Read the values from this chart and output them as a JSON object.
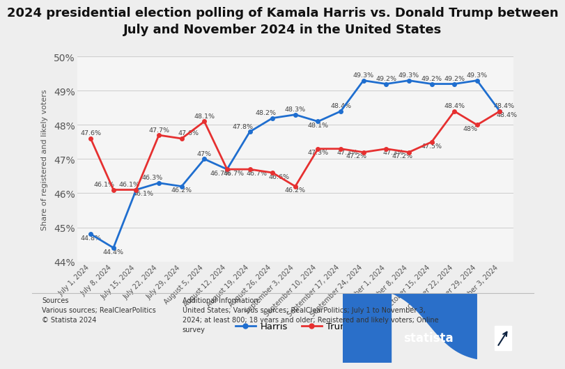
{
  "title": "2024 presidential election polling of Kamala Harris vs. Donald Trump between\nJuly and November 2024 in the United States",
  "ylabel": "Share of registered and likely voters",
  "dates": [
    "July 1, 2024",
    "July 8, 2024",
    "July 15, 2024",
    "July 22, 2024",
    "July 29, 2024",
    "August 5, 2024",
    "August 12, 2024",
    "August 19, 2024",
    "August 26, 2024",
    "September 3, 2024",
    "September 10, 2024",
    "September 17, 2024",
    "September 24, 2024",
    "October 1, 2024",
    "October 8, 2024",
    "October 15, 2024",
    "October 22, 2024",
    "October 29, 2024",
    "November 3, 2024"
  ],
  "harris": [
    44.8,
    44.4,
    46.1,
    46.3,
    46.2,
    47.0,
    46.7,
    47.8,
    48.2,
    48.3,
    48.1,
    48.4,
    49.3,
    49.2,
    49.3,
    49.2,
    49.2,
    49.3,
    48.4
  ],
  "trump": [
    47.6,
    46.1,
    46.1,
    47.7,
    47.6,
    48.1,
    46.7,
    46.7,
    46.6,
    46.2,
    47.3,
    47.3,
    47.2,
    47.3,
    47.2,
    47.5,
    48.4,
    48.0,
    48.4
  ],
  "harris_labels": [
    "44.8%",
    "44.4%",
    "46.1%",
    "46.3%",
    "46.2%",
    "47%",
    "46.7%",
    "47.8%",
    "48.2%",
    "48.3%",
    "48.1%",
    "48.4%",
    "49.3%",
    "49.2%",
    "49.3%",
    "49.2%",
    "49.2%",
    "49.3%",
    "48.4%"
  ],
  "trump_labels": [
    "47.6%",
    "46.1%",
    "46.1%",
    "47.7%",
    "47.6%",
    "48.1%",
    "46.7%",
    "46.7%",
    "46.6%",
    "46.2%",
    "47.3%",
    "47.3%",
    "47.2%",
    "47.3%",
    "47.2%",
    "47.5%",
    "48.4%",
    "48%",
    "48.4%"
  ],
  "harris_color": "#1f6ecf",
  "trump_color": "#e63030",
  "ylim": [
    44.0,
    50.0
  ],
  "yticks": [
    44,
    45,
    46,
    47,
    48,
    49,
    50
  ],
  "background_color": "#eeeeee",
  "plot_bg_color": "#f5f5f5",
  "title_fontsize": 13.0,
  "label_fontsize": 6.8,
  "sources_text": "Sources\nVarious sources; RealClearPolitics\n© Statista 2024",
  "additional_text": "Additional Information:\nUnited States; Various sources; RealClearPolitics; July 1 to November 3,\n2024; at least 800; 18 years and older; Registered and likely voters; Online\nsurvey",
  "logo_dark_color": "#0d2240",
  "logo_blue_color": "#2a6fc9"
}
